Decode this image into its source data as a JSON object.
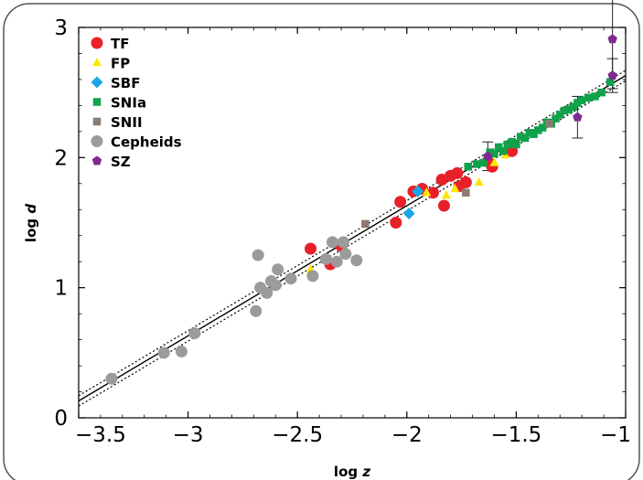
{
  "chart_data": {
    "type": "scatter",
    "title": "",
    "xlabel": "log z",
    "ylabel": "log d",
    "xlim": [
      -3.5,
      -1.0
    ],
    "ylim": [
      0,
      3
    ],
    "xticks": [
      -3.5,
      -3,
      -2.5,
      -2,
      -1.5,
      -1
    ],
    "xtick_labels": [
      "−3.5",
      "−3",
      "−2.5",
      "−2",
      "−1.5",
      "−1"
    ],
    "yticks": [
      0,
      1,
      2,
      3
    ],
    "ytick_labels": [
      "0",
      "1",
      "2",
      "3"
    ],
    "grid": false,
    "legend_position": "top-left",
    "fit_line": {
      "x": [
        -3.5,
        -1.0
      ],
      "y": [
        0.13,
        2.63
      ]
    },
    "fit_band_upper": {
      "x": [
        -3.5,
        -1.0
      ],
      "y": [
        0.17,
        2.67
      ]
    },
    "fit_band_lower": {
      "x": [
        -3.5,
        -1.0
      ],
      "y": [
        0.09,
        2.59
      ]
    },
    "series": [
      {
        "name": "TF",
        "marker": "circle",
        "color": "#e8202a",
        "points": [
          [
            -2.44,
            1.3
          ],
          [
            -2.35,
            1.18
          ],
          [
            -2.3,
            1.32
          ],
          [
            -2.05,
            1.5
          ],
          [
            -2.03,
            1.66
          ],
          [
            -1.97,
            1.74
          ],
          [
            -1.93,
            1.76
          ],
          [
            -1.88,
            1.73
          ],
          [
            -1.84,
            1.83
          ],
          [
            -1.83,
            1.63
          ],
          [
            -1.8,
            1.86
          ],
          [
            -1.77,
            1.88
          ],
          [
            -1.76,
            1.78
          ],
          [
            -1.73,
            1.81
          ],
          [
            -1.63,
            1.97
          ],
          [
            -1.61,
            1.93
          ],
          [
            -1.52,
            2.05
          ]
        ]
      },
      {
        "name": "FP",
        "marker": "triangle",
        "color": "#ffe600",
        "points": [
          [
            -2.44,
            1.14
          ],
          [
            -1.91,
            1.73
          ],
          [
            -1.82,
            1.71
          ],
          [
            -1.78,
            1.76
          ],
          [
            -1.67,
            1.81
          ],
          [
            -1.6,
            1.96
          ],
          [
            -1.55,
            2.02
          ]
        ]
      },
      {
        "name": "SBF",
        "marker": "diamond",
        "color": "#1aa7e8",
        "points": [
          [
            -1.99,
            1.57
          ],
          [
            -1.95,
            1.74
          ]
        ]
      },
      {
        "name": "SNIa",
        "marker": "square",
        "color": "#10a24b",
        "points": [
          [
            -1.72,
            1.93
          ],
          [
            -1.68,
            1.95
          ],
          [
            -1.65,
            1.96
          ],
          [
            -1.62,
            2.04
          ],
          [
            -1.6,
            2.03
          ],
          [
            -1.58,
            2.08
          ],
          [
            -1.56,
            2.05
          ],
          [
            -1.54,
            2.1
          ],
          [
            -1.52,
            2.12
          ],
          [
            -1.5,
            2.1
          ],
          [
            -1.48,
            2.16
          ],
          [
            -1.46,
            2.15
          ],
          [
            -1.44,
            2.19
          ],
          [
            -1.42,
            2.18
          ],
          [
            -1.4,
            2.21
          ],
          [
            -1.38,
            2.23
          ],
          [
            -1.36,
            2.27
          ],
          [
            -1.34,
            2.26
          ],
          [
            -1.32,
            2.3
          ],
          [
            -1.3,
            2.33
          ],
          [
            -1.28,
            2.36
          ],
          [
            -1.26,
            2.37
          ],
          [
            -1.24,
            2.39
          ],
          [
            -1.22,
            2.42
          ],
          [
            -1.2,
            2.44
          ],
          [
            -1.17,
            2.46
          ],
          [
            -1.14,
            2.47
          ],
          [
            -1.11,
            2.5
          ],
          [
            -1.07,
            2.58
          ]
        ]
      },
      {
        "name": "SNII",
        "marker": "square",
        "color": "#8c7b73",
        "points": [
          [
            -2.19,
            1.49
          ],
          [
            -1.73,
            1.73
          ],
          [
            -1.35,
            2.26
          ]
        ]
      },
      {
        "name": "Cepheids",
        "marker": "circle",
        "color": "#9b9b9b",
        "points": [
          [
            -3.35,
            0.3
          ],
          [
            -3.11,
            0.5
          ],
          [
            -3.03,
            0.51
          ],
          [
            -2.97,
            0.65
          ],
          [
            -2.69,
            0.82
          ],
          [
            -2.68,
            1.25
          ],
          [
            -2.67,
            1.0
          ],
          [
            -2.64,
            0.96
          ],
          [
            -2.62,
            1.05
          ],
          [
            -2.6,
            1.02
          ],
          [
            -2.59,
            1.14
          ],
          [
            -2.53,
            1.07
          ],
          [
            -2.43,
            1.09
          ],
          [
            -2.37,
            1.22
          ],
          [
            -2.34,
            1.35
          ],
          [
            -2.32,
            1.2
          ],
          [
            -2.29,
            1.35
          ],
          [
            -2.28,
            1.26
          ],
          [
            -2.23,
            1.21
          ]
        ]
      },
      {
        "name": "SZ",
        "marker": "pentagon",
        "color": "#7d2c8e",
        "points": [
          [
            -1.63,
            2.01
          ],
          [
            -1.22,
            2.31
          ],
          [
            -1.06,
            2.91
          ],
          [
            -1.06,
            2.63
          ]
        ],
        "errors": [
          0.11,
          0.16,
          0.38,
          0.13
        ]
      }
    ]
  }
}
